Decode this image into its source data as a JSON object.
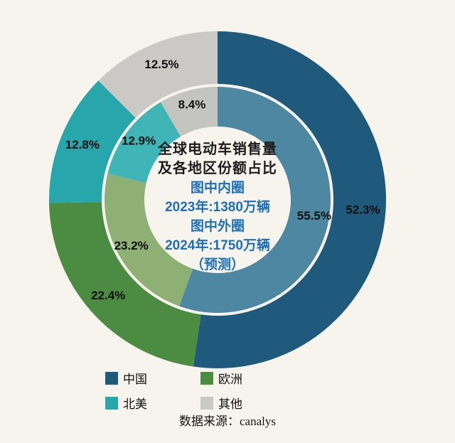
{
  "background_color": "#f7f4ee",
  "chart_data": {
    "type": "donut",
    "subtype": "nested-double-ring",
    "title_lines": [
      "全球电动车销售量",
      "及各地区份额占比"
    ],
    "note_lines": [
      "图中内圈",
      "2023年:1380万辆",
      "图中外圈",
      "2024年:1750万辆",
      "（预测）"
    ],
    "title_color": "#1c1c1c",
    "note_color": "#1d6fb8",
    "label_color": "#101010",
    "categories": [
      "中国",
      "欧洲",
      "北美",
      "其他"
    ],
    "series": [
      {
        "name": "2023年 内圈 1380万辆",
        "ring": "inner",
        "values": [
          55.5,
          23.2,
          12.9,
          8.4
        ],
        "labels": [
          "55.5%",
          "23.2%",
          "12.9%",
          "8.4%"
        ],
        "colors": [
          "#4d87a2",
          "#8fb074",
          "#3fb5b8",
          "#c4c4c0"
        ]
      },
      {
        "name": "2024年 外圈 1750万辆 (预测)",
        "ring": "outer",
        "values": [
          52.3,
          22.4,
          12.8,
          12.5
        ],
        "labels": [
          "52.3%",
          "22.4%",
          "12.8%",
          "12.5%"
        ],
        "colors": [
          "#1f5a7d",
          "#4c8b42",
          "#27a6ab",
          "#cac9c5"
        ]
      }
    ],
    "start_angle_deg": 0,
    "direction": "clockwise",
    "legend_position": "bottom"
  },
  "legend": {
    "items": [
      {
        "label": "中国",
        "color": "#1f5a7d"
      },
      {
        "label": "欧洲",
        "color": "#4c8b42"
      },
      {
        "label": "北美",
        "color": "#27a6ab"
      },
      {
        "label": "其他",
        "color": "#cac9c5"
      }
    ]
  },
  "source": "数据来源：canalys"
}
